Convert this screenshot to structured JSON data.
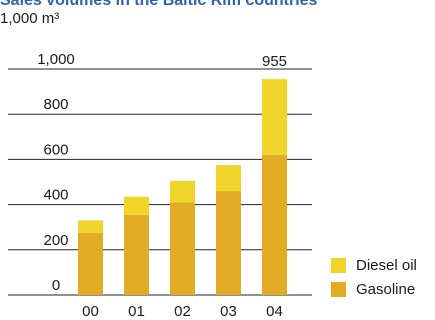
{
  "title": "Sales volumes in the Baltic Rim countries",
  "unit": "1,000 m³",
  "colors": {
    "gasoline": "#e2ab25",
    "diesel": "#f0d42a",
    "grid": "#222222",
    "title": "#2f63ae"
  },
  "chart_data": {
    "type": "bar",
    "stacked": true,
    "title": "Sales volumes in the Baltic Rim countries",
    "ylabel": "1,000 m³",
    "xlabel": "",
    "categories": [
      "00",
      "01",
      "02",
      "03",
      "04"
    ],
    "series": [
      {
        "name": "Gasoline",
        "values": [
          275,
          355,
          410,
          460,
          620
        ]
      },
      {
        "name": "Diesel oil",
        "values": [
          55,
          80,
          95,
          115,
          335
        ]
      }
    ],
    "totals": [
      330,
      435,
      505,
      575,
      955
    ],
    "data_labels": [
      {
        "category": "04",
        "text": "955"
      }
    ],
    "y_ticks": [
      {
        "value": 0,
        "label": "0"
      },
      {
        "value": 200,
        "label": "200"
      },
      {
        "value": 400,
        "label": "400"
      },
      {
        "value": 600,
        "label": "600"
      },
      {
        "value": 800,
        "label": "800"
      },
      {
        "value": 1000,
        "label": "1,000"
      }
    ],
    "ylim": [
      0,
      1000
    ],
    "grid": true,
    "legend": {
      "position": "bottom-right",
      "entries": [
        "Diesel oil",
        "Gasoline"
      ]
    }
  }
}
